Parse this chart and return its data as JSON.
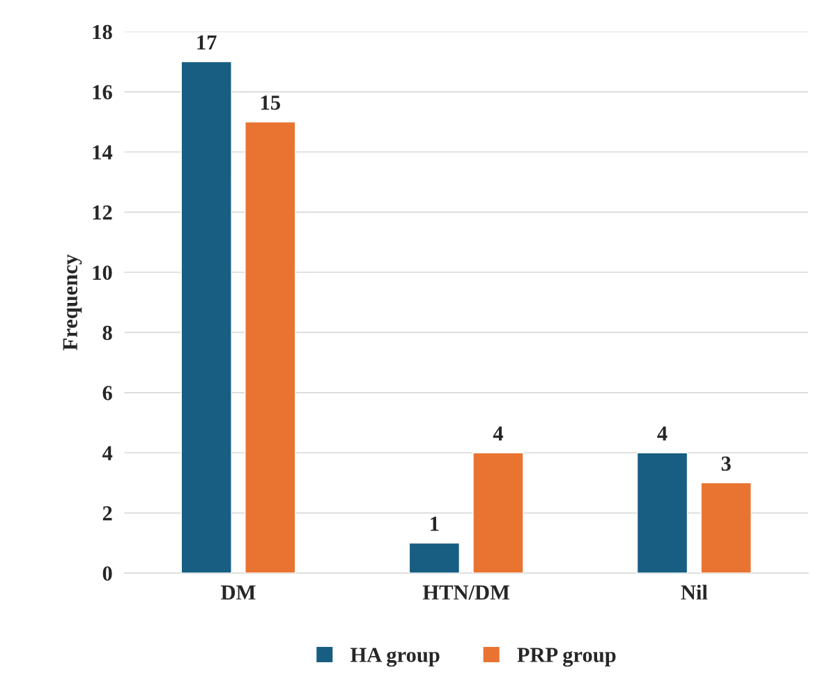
{
  "chart_data": {
    "type": "bar",
    "ylabel": "Frequency",
    "categories": [
      "DM",
      "HTN/DM",
      "Nil"
    ],
    "series": [
      {
        "name": "HA group",
        "color": "#175e82",
        "values": [
          17,
          1,
          4
        ]
      },
      {
        "name": "PRP group",
        "color": "#e97432",
        "values": [
          15,
          4,
          3
        ]
      }
    ],
    "ylim": [
      0,
      18
    ],
    "yticks": [
      0,
      2,
      4,
      6,
      8,
      10,
      12,
      14,
      16,
      18
    ],
    "grid": "y",
    "legend": "bottom",
    "data_labels": true
  }
}
